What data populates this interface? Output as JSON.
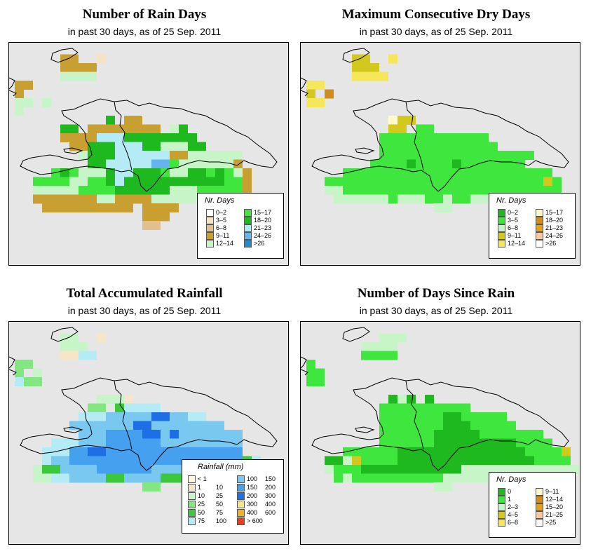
{
  "panels": [
    {
      "title": "Number of Rain Days",
      "subtitle": "in past 30 days, as of  25 Sep. 2011",
      "legend_title": "Nr. Days",
      "legend": [
        {
          "c": "#ffffff",
          "a": "0–2"
        },
        {
          "c": "#f5e3c6",
          "a": "3–5"
        },
        {
          "c": "#dfc08e",
          "a": "6–8"
        },
        {
          "c": "#c8a032",
          "a": "9–11"
        },
        {
          "c": "#c8f5c8",
          "a": "12–14"
        },
        {
          "c": "#3ee63e",
          "a": "15–17"
        },
        {
          "c": "#1eb91e",
          "a": "18–20"
        },
        {
          "c": "#b4ebf5",
          "a": "21–23"
        },
        {
          "c": "#64b4f0",
          "a": "24–26"
        },
        {
          "c": "#1e8ccd",
          "a": ">26"
        }
      ]
    },
    {
      "title": "Maximum Consecutive Dry Days",
      "subtitle": "in past 30 days, as of  25 Sep. 2011",
      "legend_title": "Nr. Days",
      "legend": [
        {
          "c": "#1eb91e",
          "a": "0–2"
        },
        {
          "c": "#3ee63e",
          "a": "3–5"
        },
        {
          "c": "#c8f5c8",
          "a": "6–8"
        },
        {
          "c": "#d2c81e",
          "a": "9–11"
        },
        {
          "c": "#f5e65a",
          "a": "12–14"
        },
        {
          "c": "#fffac8",
          "a": "15–17"
        },
        {
          "c": "#d28c1e",
          "a": "18–20"
        },
        {
          "c": "#e6a014",
          "a": "21–23"
        },
        {
          "c": "#fac8a0",
          "a": "24–26"
        },
        {
          "c": "#ffffff",
          "a": ">26"
        }
      ]
    },
    {
      "title": "Total Accumulated Rainfall",
      "subtitle": "in past 30 days, as of  25 Sep. 2011",
      "legend_title": "Rainfall (mm)",
      "legend": [
        {
          "c": "#fff5dc",
          "a": "< 1",
          "b": ""
        },
        {
          "c": "#f5e6c8",
          "a": "1",
          "b": "10"
        },
        {
          "c": "#c8f5c8",
          "a": "10",
          "b": "25"
        },
        {
          "c": "#82e682",
          "a": "25",
          "b": "50"
        },
        {
          "c": "#3cc83c",
          "a": "50",
          "b": "75"
        },
        {
          "c": "#b4ebf5",
          "a": "75",
          "b": "100"
        },
        {
          "c": "#78c8f0",
          "a": "100",
          "b": "150"
        },
        {
          "c": "#46a0f0",
          "a": "150",
          "b": "200"
        },
        {
          "c": "#1e6ee6",
          "a": "200",
          "b": "300"
        },
        {
          "c": "#f5e682",
          "a": "300",
          "b": "400"
        },
        {
          "c": "#f0b41e",
          "a": "400",
          "b": "600"
        },
        {
          "c": "#f03c14",
          "a": "> 600",
          "b": ""
        }
      ]
    },
    {
      "title": "Number of Days Since Rain",
      "subtitle": "in past 30 days, as of  25 Sep. 2011",
      "legend_title": "Nr. Days",
      "legend": [
        {
          "c": "#1eb91e",
          "a": "0"
        },
        {
          "c": "#3ee63e",
          "a": "1"
        },
        {
          "c": "#c8f5c8",
          "a": "2–3"
        },
        {
          "c": "#d2c81e",
          "a": "4–5"
        },
        {
          "c": "#f5e65a",
          "a": "6–8"
        },
        {
          "c": "#fffac8",
          "a": "9–11"
        },
        {
          "c": "#d28c1e",
          "a": "12–14"
        },
        {
          "c": "#e6a014",
          "a": "15–20"
        },
        {
          "c": "#fac8a0",
          "a": "21–25"
        },
        {
          "c": "#ffffff",
          "a": ">25"
        }
      ]
    }
  ]
}
